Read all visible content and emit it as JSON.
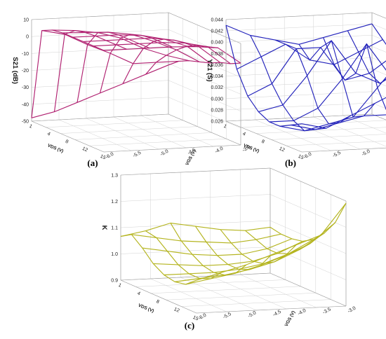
{
  "chart_data": [
    {
      "type": "wireframe-3d",
      "panel_label": "(a)",
      "zlabel": "S21 (dB)",
      "xlabel": "VDS (V)",
      "ylabel": "VGS (V)",
      "zlim": [
        -50,
        12
      ],
      "z_ticks": [
        "10",
        "0",
        "-10",
        "-20",
        "-30",
        "-40",
        "-50"
      ],
      "x_ticks": [
        "1",
        "4",
        "8",
        "12",
        "15"
      ],
      "y_ticks": [
        "-3.0",
        "-4.0",
        "-4.5",
        "-5.0",
        "-5.5",
        "-6.0"
      ],
      "color": "#b02070",
      "rows_along_vgs": [
        -3.0,
        -3.5,
        -4.0,
        -4.5,
        -5.0,
        -5.5,
        -6.0
      ],
      "cols_along_vds": [
        1,
        3,
        5,
        7,
        9,
        11,
        13,
        15
      ],
      "z": [
        [
          -48,
          8,
          11,
          12,
          12,
          12,
          12,
          12
        ],
        [
          -45,
          5,
          10,
          11.5,
          12,
          12,
          12,
          12
        ],
        [
          -40,
          -2,
          8,
          11,
          12,
          12,
          12,
          12
        ],
        [
          -35,
          -8,
          4,
          9,
          11,
          12,
          12,
          12
        ],
        [
          -30,
          -15,
          -3,
          4,
          8,
          10,
          11,
          11.5
        ],
        [
          -25,
          -15,
          -8,
          -2,
          3,
          6,
          8,
          10
        ],
        [
          -20,
          -15,
          -12,
          -10,
          -8,
          -5,
          -3,
          0
        ]
      ]
    },
    {
      "type": "wireframe-3d",
      "panel_label": "(b)",
      "zlabel": "Y21 (S)",
      "xlabel": "VDS (V)",
      "ylabel": "VGS (V)",
      "zlim": [
        0.026,
        0.044
      ],
      "z_ticks": [
        "0.044",
        "0.042",
        "0.040",
        "0.038",
        "0.036",
        "0.034",
        "0.032",
        "0.030",
        "0.028",
        "0.026"
      ],
      "x_ticks": [
        "1",
        "4",
        "8",
        "12",
        "15"
      ],
      "y_ticks": [
        "-3.0",
        "-4.0",
        "-4.5",
        "-5.0",
        "-5.5",
        "-6.0"
      ],
      "color": "#2222bb",
      "rows_along_vgs": [
        -3.0,
        -3.5,
        -4.0,
        -4.5,
        -5.0,
        -5.5,
        -6.0
      ],
      "cols_along_vds": [
        1,
        3,
        5,
        7,
        9,
        11,
        13,
        15
      ],
      "z": [
        [
          0.043,
          0.036,
          0.032,
          0.03,
          0.029,
          0.029,
          0.03,
          0.031
        ],
        [
          0.041,
          0.038,
          0.034,
          0.031,
          0.029,
          0.028,
          0.029,
          0.03
        ],
        [
          0.04,
          0.04,
          0.04,
          0.036,
          0.031,
          0.029,
          0.03,
          0.032
        ],
        [
          0.039,
          0.037,
          0.04,
          0.042,
          0.036,
          0.03,
          0.031,
          0.034
        ],
        [
          0.04,
          0.036,
          0.034,
          0.036,
          0.042,
          0.035,
          0.031,
          0.036
        ],
        [
          0.041,
          0.038,
          0.035,
          0.034,
          0.036,
          0.04,
          0.034,
          0.038
        ],
        [
          0.042,
          0.04,
          0.038,
          0.037,
          0.037,
          0.038,
          0.039,
          0.04
        ]
      ]
    },
    {
      "type": "wireframe-3d",
      "panel_label": "(c)",
      "zlabel": "K",
      "xlabel": "VDS (V)",
      "ylabel": "VGS (V)",
      "zlim": [
        0.85,
        1.33
      ],
      "z_ticks": [
        "1.3",
        "1.2",
        "1.1",
        "1.0",
        "0.9"
      ],
      "x_ticks": [
        "1",
        "4",
        "8",
        "12",
        "15"
      ],
      "y_ticks": [
        "-3.0",
        "-3.5",
        "-4.0",
        "-4.5",
        "-5.0",
        "-5.5",
        "-6.0"
      ],
      "color": "#b4b41e",
      "rows_along_vgs": [
        -3.0,
        -3.5,
        -4.0,
        -4.5,
        -5.0,
        -5.5,
        -6.0
      ],
      "cols_along_vds": [
        1,
        3,
        5,
        7,
        9,
        11,
        13,
        15
      ],
      "z": [
        [
          1.05,
          1.08,
          1.04,
          0.99,
          0.96,
          0.95,
          0.96,
          1.0
        ],
        [
          1.07,
          1.06,
          1.02,
          0.98,
          0.96,
          0.96,
          0.98,
          1.03
        ],
        [
          1.1,
          1.04,
          1.0,
          0.97,
          0.96,
          0.97,
          1.0,
          1.06
        ],
        [
          1.08,
          1.03,
          0.99,
          0.97,
          0.97,
          0.99,
          1.03,
          1.1
        ],
        [
          1.06,
          1.02,
          0.99,
          0.98,
          0.99,
          1.02,
          1.07,
          1.14
        ],
        [
          1.05,
          1.03,
          1.01,
          1.01,
          1.03,
          1.07,
          1.12,
          1.18
        ],
        [
          1.06,
          1.05,
          1.05,
          1.06,
          1.09,
          1.14,
          1.21,
          1.32
        ]
      ]
    }
  ]
}
